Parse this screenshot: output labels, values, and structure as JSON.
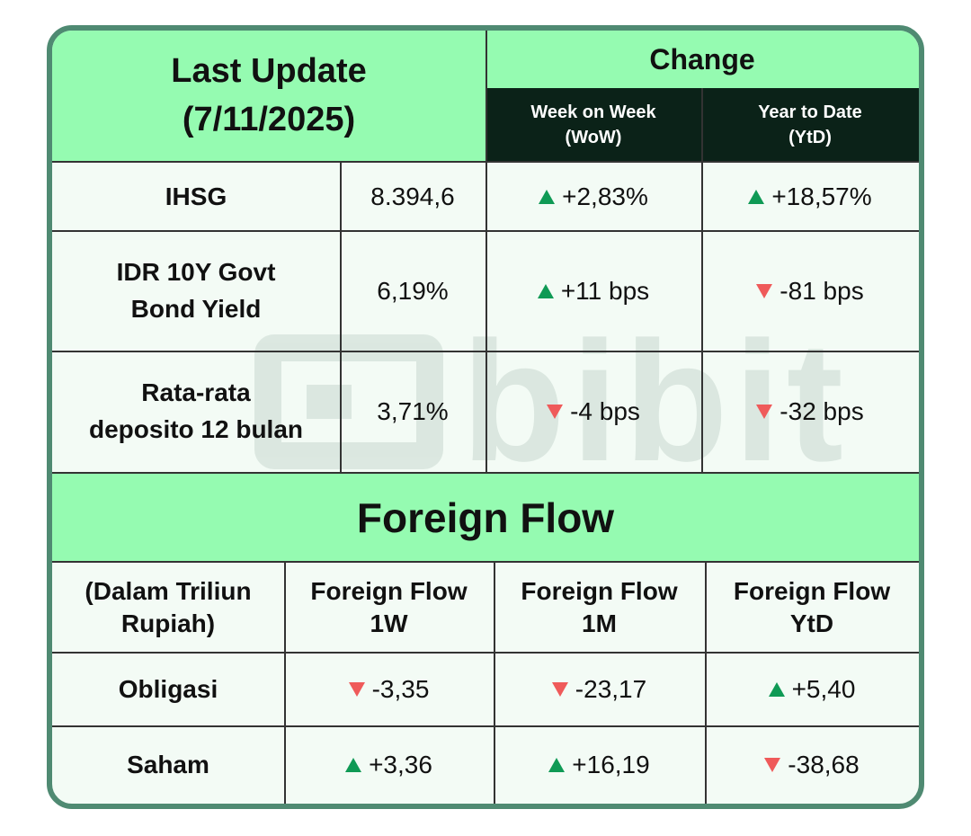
{
  "header": {
    "title_line1": "Last Update",
    "title_line2": "(7/11/2025)",
    "change": "Change",
    "wow_line1": "Week on Week",
    "wow_line2": "(WoW)",
    "ytd_line1": "Year to Date",
    "ytd_line2": "(YtD)"
  },
  "rows": [
    {
      "label_line1": "IHSG",
      "label_line2": "",
      "value": "8.394,6",
      "wow": "+2,83%",
      "wow_dir": "up",
      "ytd": "+18,57%",
      "ytd_dir": "up"
    },
    {
      "label_line1": "IDR 10Y Govt",
      "label_line2": "Bond Yield",
      "value": "6,19%",
      "wow": "+11 bps",
      "wow_dir": "up",
      "ytd": "-81 bps",
      "ytd_dir": "down"
    },
    {
      "label_line1": "Rata-rata",
      "label_line2": "deposito 12 bulan",
      "value": "3,71%",
      "wow": "-4 bps",
      "wow_dir": "down",
      "ytd": "-32 bps",
      "ytd_dir": "down"
    }
  ],
  "foreign": {
    "title": "Foreign Flow",
    "unit_line1": "(Dalam Triliun",
    "unit_line2": "Rupiah)",
    "col1_line1": "Foreign Flow",
    "col1_line2": "1W",
    "col2_line1": "Foreign Flow",
    "col2_line2": "1M",
    "col3_line1": "Foreign Flow",
    "col3_line2": "YtD",
    "rows": [
      {
        "label": "Obligasi",
        "w1": "-3,35",
        "w1_dir": "down",
        "m1": "-23,17",
        "m1_dir": "down",
        "ytd": "+5,40",
        "ytd_dir": "up"
      },
      {
        "label": "Saham",
        "w1": "+3,36",
        "w1_dir": "up",
        "m1": "+16,19",
        "m1_dir": "up",
        "ytd": "-38,68",
        "ytd_dir": "down"
      }
    ]
  },
  "watermark": "bibit",
  "colors": {
    "header_green": "#95fbb1",
    "dark": "#0b2218",
    "up": "#0f9a55",
    "down": "#ef5a5a",
    "border": "#4f8a72"
  }
}
